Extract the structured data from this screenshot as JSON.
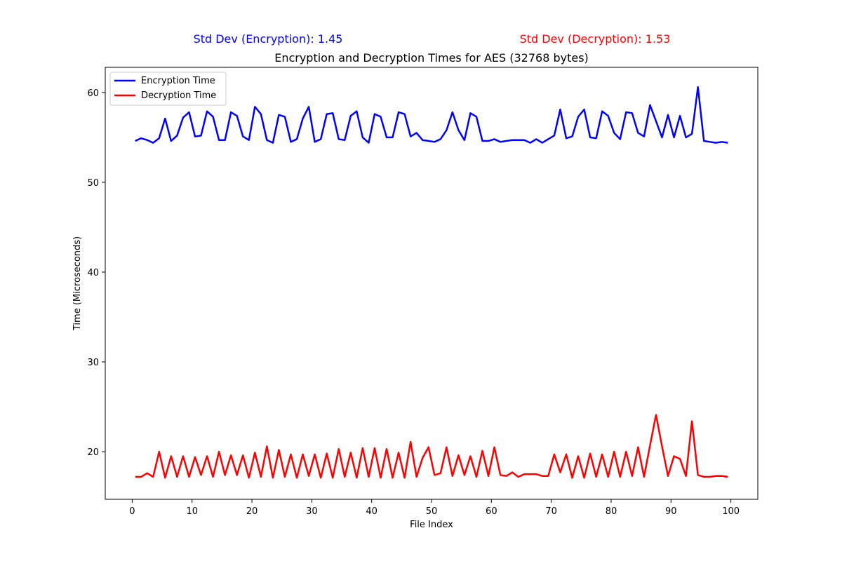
{
  "annotations": {
    "enc_std": "Std Dev (Encryption): 1.45",
    "dec_std": "Std Dev (Decryption): 1.53",
    "enc_color": "#0000ff",
    "dec_color": "#ff0000"
  },
  "chart_data": {
    "type": "line",
    "title": "Encryption and Decryption Times for AES (32768 bytes)",
    "xlabel": "File Index",
    "ylabel": "Time (Microseconds)",
    "xlim": [
      -4.5,
      104.5
    ],
    "ylim": [
      14.7,
      62.8
    ],
    "xticks": [
      0,
      10,
      20,
      30,
      40,
      50,
      60,
      70,
      80,
      90,
      100
    ],
    "yticks": [
      20,
      30,
      40,
      50,
      60
    ],
    "legend_position": "upper-left",
    "x": [
      0.5,
      1.5,
      2.5,
      3.5,
      4.5,
      5.5,
      6.5,
      7.5,
      8.5,
      9.5,
      10.5,
      11.5,
      12.5,
      13.5,
      14.5,
      15.5,
      16.5,
      17.5,
      18.5,
      19.5,
      20.5,
      21.5,
      22.5,
      23.5,
      24.5,
      25.5,
      26.5,
      27.5,
      28.5,
      29.5,
      30.5,
      31.5,
      32.5,
      33.5,
      34.5,
      35.5,
      36.5,
      37.5,
      38.5,
      39.5,
      40.5,
      41.5,
      42.5,
      43.5,
      44.5,
      45.5,
      46.5,
      47.5,
      48.5,
      49.5,
      50.5,
      51.5,
      52.5,
      53.5,
      54.5,
      55.5,
      56.5,
      57.5,
      58.5,
      59.5,
      60.5,
      61.5,
      62.5,
      63.5,
      64.5,
      65.5,
      66.5,
      67.5,
      68.5,
      69.5,
      70.5,
      71.5,
      72.5,
      73.5,
      74.5,
      75.5,
      76.5,
      77.5,
      78.5,
      79.5,
      80.5,
      81.5,
      82.5,
      83.5,
      84.5,
      85.5,
      86.5,
      87.5,
      88.5,
      89.5,
      90.5,
      91.5,
      92.5,
      93.5,
      94.5,
      95.5,
      96.5,
      97.5,
      98.5,
      99.5
    ],
    "series": [
      {
        "name": "Encryption Time",
        "color": "#0000ff",
        "values": [
          54.6,
          54.9,
          54.7,
          54.4,
          54.9,
          57.1,
          54.6,
          55.2,
          57.2,
          57.8,
          55.1,
          55.2,
          57.9,
          57.3,
          54.7,
          54.7,
          57.8,
          57.4,
          55.1,
          54.7,
          58.4,
          57.6,
          54.7,
          54.4,
          57.5,
          57.3,
          54.5,
          54.8,
          57.1,
          58.4,
          54.5,
          54.8,
          57.6,
          57.7,
          54.8,
          54.7,
          57.4,
          57.9,
          55.0,
          54.4,
          57.6,
          57.3,
          55.0,
          55.0,
          57.8,
          57.6,
          55.1,
          55.5,
          54.7,
          54.6,
          54.5,
          54.8,
          55.8,
          57.8,
          55.8,
          54.7,
          57.7,
          57.3,
          54.6,
          54.6,
          54.8,
          54.5,
          54.6,
          54.7,
          54.7,
          54.7,
          54.4,
          54.8,
          54.4,
          54.8,
          55.2,
          58.1,
          54.9,
          55.1,
          57.3,
          58.1,
          55.0,
          54.9,
          57.9,
          57.4,
          55.5,
          54.8,
          57.8,
          57.7,
          55.5,
          55.1,
          58.6,
          56.8,
          55.0,
          57.5,
          55.0,
          57.4,
          55.0,
          55.4,
          60.6,
          54.6,
          54.5,
          54.4,
          54.5,
          54.4
        ]
      },
      {
        "name": "Decryption Time",
        "color": "#ff0000",
        "values": [
          17.2,
          17.2,
          17.6,
          17.2,
          20.0,
          17.1,
          19.5,
          17.2,
          19.5,
          17.2,
          19.4,
          17.4,
          19.5,
          17.2,
          20.0,
          17.4,
          19.6,
          17.4,
          19.6,
          17.1,
          19.9,
          17.2,
          20.6,
          17.1,
          20.2,
          17.2,
          19.7,
          17.1,
          19.7,
          17.3,
          19.7,
          17.1,
          19.8,
          17.1,
          20.3,
          17.2,
          19.9,
          17.1,
          20.4,
          17.2,
          20.4,
          17.1,
          20.3,
          17.1,
          19.9,
          17.1,
          21.1,
          17.2,
          19.3,
          20.5,
          17.4,
          17.6,
          20.5,
          17.3,
          19.6,
          17.4,
          19.5,
          17.2,
          20.1,
          17.3,
          20.5,
          17.4,
          17.3,
          17.7,
          17.2,
          17.5,
          17.5,
          17.5,
          17.3,
          17.3,
          19.7,
          17.7,
          19.7,
          17.1,
          19.5,
          17.1,
          19.8,
          17.2,
          19.7,
          17.2,
          20.0,
          17.2,
          20.0,
          17.3,
          20.5,
          17.2,
          20.7,
          24.1,
          20.6,
          17.3,
          19.5,
          19.2,
          17.3,
          23.4,
          17.4,
          17.2,
          17.2,
          17.3,
          17.3,
          17.2
        ]
      }
    ]
  }
}
